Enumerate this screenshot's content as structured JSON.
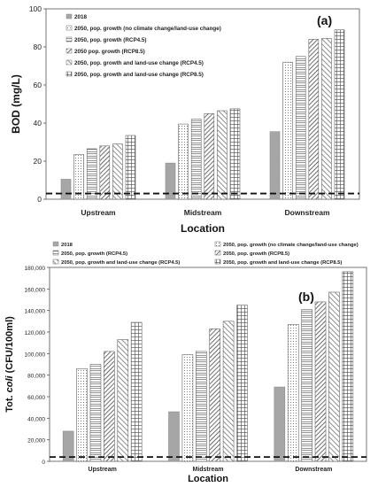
{
  "chart_data": [
    {
      "type": "bar",
      "panel_label": "(a)",
      "categories": [
        "Upstream",
        "Midstream",
        "Downstream"
      ],
      "xlabel": "Location",
      "ylabel": "BOD (mg/L)",
      "ylim": [
        0,
        100
      ],
      "yticks": [
        "0",
        "20",
        "40",
        "60",
        "80",
        "100"
      ],
      "reference_line": 3,
      "legend_position": "top-left inside",
      "series": [
        {
          "name": "2018",
          "values": [
            10.5,
            19,
            35.5
          ]
        },
        {
          "name": "2050, pop. growth (no climate change/land-use change)",
          "values": [
            23.5,
            39.5,
            72
          ]
        },
        {
          "name": "2050, pop. growth (RCP4.5)",
          "values": [
            26.5,
            42,
            75
          ]
        },
        {
          "name": "2050 pop. growth (RCP8.5)",
          "values": [
            28,
            45,
            84
          ]
        },
        {
          "name": "2050, pop. growth and land-use change (RCP4.5)",
          "values": [
            29,
            46.5,
            84.5
          ]
        },
        {
          "name": "2050, pop. growth and land-use change (RCP8.5)",
          "values": [
            33.5,
            47.5,
            89
          ]
        }
      ]
    },
    {
      "type": "bar",
      "panel_label": "(b)",
      "categories": [
        "Upstream",
        "Midstream",
        "Downstream"
      ],
      "xlabel": "Location",
      "ylabel_prefix": "Tot. ",
      "ylabel_italic": "coli",
      "ylabel_suffix": " (CFU/100ml)",
      "ylim": [
        0,
        180000
      ],
      "yticks": [
        "0",
        "20,000",
        "40,000",
        "60,000",
        "80,000",
        "100,000",
        "120,000",
        "140,000",
        "160,000",
        "180,000"
      ],
      "reference_line": 4000,
      "legend_position": "top",
      "series": [
        {
          "name": "2018",
          "values": [
            28000,
            46000,
            69000
          ]
        },
        {
          "name": "2050, pop. growth (no climate change/land-use change)",
          "values": [
            86000,
            99000,
            127000
          ]
        },
        {
          "name": "2050, pop. growth (RCP4.5)",
          "values": [
            90000,
            102000,
            141000
          ]
        },
        {
          "name": "2050, pop. growth (RCP8.5)",
          "values": [
            102000,
            123000,
            148000
          ]
        },
        {
          "name": "2050, pop. growth and land-use change (RCP4.5)",
          "values": [
            113000,
            130000,
            157000
          ]
        },
        {
          "name": "2050, pop. growth and land-use change (RCP8.5)",
          "values": [
            129000,
            145000,
            176000
          ]
        }
      ]
    }
  ]
}
